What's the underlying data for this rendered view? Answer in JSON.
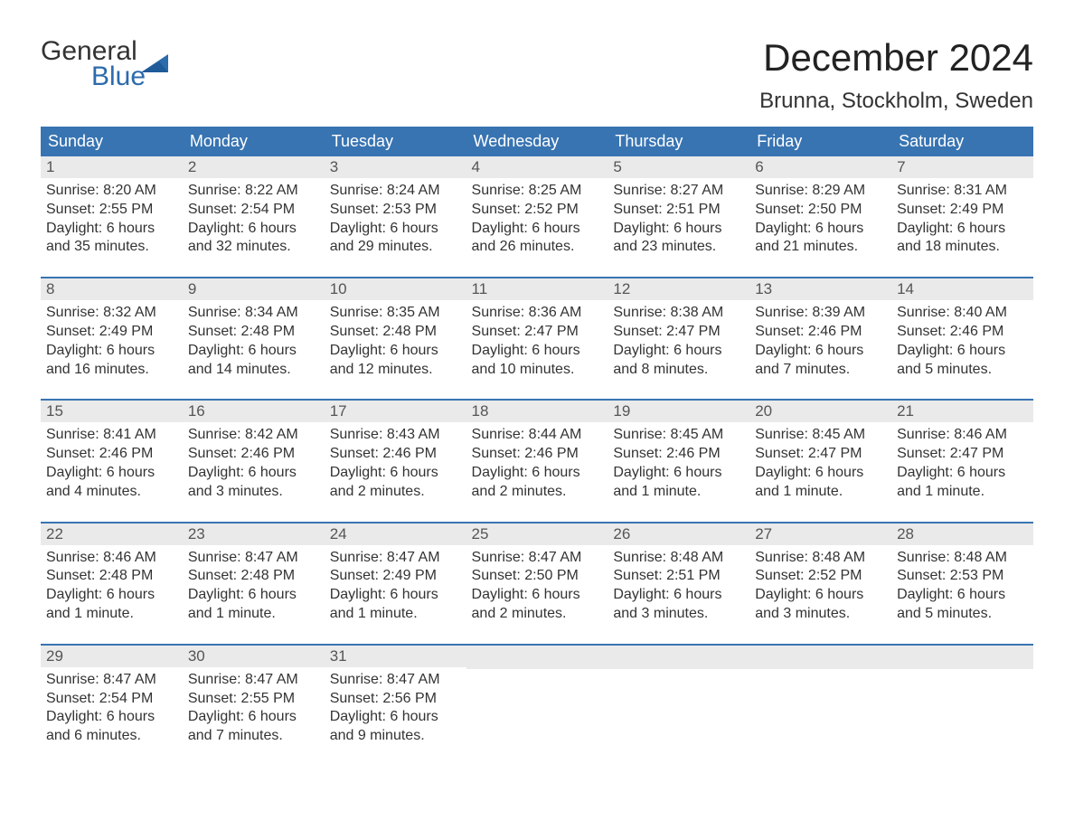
{
  "logo": {
    "word1": "General",
    "word2": "Blue"
  },
  "title": "December 2024",
  "location": "Brunna, Stockholm, Sweden",
  "colors": {
    "header_bg": "#3874b2",
    "header_text": "#ffffff",
    "daynum_bg": "#eaeaea",
    "rule": "#3874b2",
    "logo_blue": "#2c6bac",
    "body_text": "#333333",
    "page_bg": "#ffffff"
  },
  "weekdays": [
    "Sunday",
    "Monday",
    "Tuesday",
    "Wednesday",
    "Thursday",
    "Friday",
    "Saturday"
  ],
  "weeks": [
    [
      {
        "n": "1",
        "t": "Sunrise: 8:20 AM\nSunset: 2:55 PM\nDaylight: 6 hours and 35 minutes."
      },
      {
        "n": "2",
        "t": "Sunrise: 8:22 AM\nSunset: 2:54 PM\nDaylight: 6 hours and 32 minutes."
      },
      {
        "n": "3",
        "t": "Sunrise: 8:24 AM\nSunset: 2:53 PM\nDaylight: 6 hours and 29 minutes."
      },
      {
        "n": "4",
        "t": "Sunrise: 8:25 AM\nSunset: 2:52 PM\nDaylight: 6 hours and 26 minutes."
      },
      {
        "n": "5",
        "t": "Sunrise: 8:27 AM\nSunset: 2:51 PM\nDaylight: 6 hours and 23 minutes."
      },
      {
        "n": "6",
        "t": "Sunrise: 8:29 AM\nSunset: 2:50 PM\nDaylight: 6 hours and 21 minutes."
      },
      {
        "n": "7",
        "t": "Sunrise: 8:31 AM\nSunset: 2:49 PM\nDaylight: 6 hours and 18 minutes."
      }
    ],
    [
      {
        "n": "8",
        "t": "Sunrise: 8:32 AM\nSunset: 2:49 PM\nDaylight: 6 hours and 16 minutes."
      },
      {
        "n": "9",
        "t": "Sunrise: 8:34 AM\nSunset: 2:48 PM\nDaylight: 6 hours and 14 minutes."
      },
      {
        "n": "10",
        "t": "Sunrise: 8:35 AM\nSunset: 2:48 PM\nDaylight: 6 hours and 12 minutes."
      },
      {
        "n": "11",
        "t": "Sunrise: 8:36 AM\nSunset: 2:47 PM\nDaylight: 6 hours and 10 minutes."
      },
      {
        "n": "12",
        "t": "Sunrise: 8:38 AM\nSunset: 2:47 PM\nDaylight: 6 hours and 8 minutes."
      },
      {
        "n": "13",
        "t": "Sunrise: 8:39 AM\nSunset: 2:46 PM\nDaylight: 6 hours and 7 minutes."
      },
      {
        "n": "14",
        "t": "Sunrise: 8:40 AM\nSunset: 2:46 PM\nDaylight: 6 hours and 5 minutes."
      }
    ],
    [
      {
        "n": "15",
        "t": "Sunrise: 8:41 AM\nSunset: 2:46 PM\nDaylight: 6 hours and 4 minutes."
      },
      {
        "n": "16",
        "t": "Sunrise: 8:42 AM\nSunset: 2:46 PM\nDaylight: 6 hours and 3 minutes."
      },
      {
        "n": "17",
        "t": "Sunrise: 8:43 AM\nSunset: 2:46 PM\nDaylight: 6 hours and 2 minutes."
      },
      {
        "n": "18",
        "t": "Sunrise: 8:44 AM\nSunset: 2:46 PM\nDaylight: 6 hours and 2 minutes."
      },
      {
        "n": "19",
        "t": "Sunrise: 8:45 AM\nSunset: 2:46 PM\nDaylight: 6 hours and 1 minute."
      },
      {
        "n": "20",
        "t": "Sunrise: 8:45 AM\nSunset: 2:47 PM\nDaylight: 6 hours and 1 minute."
      },
      {
        "n": "21",
        "t": "Sunrise: 8:46 AM\nSunset: 2:47 PM\nDaylight: 6 hours and 1 minute."
      }
    ],
    [
      {
        "n": "22",
        "t": "Sunrise: 8:46 AM\nSunset: 2:48 PM\nDaylight: 6 hours and 1 minute."
      },
      {
        "n": "23",
        "t": "Sunrise: 8:47 AM\nSunset: 2:48 PM\nDaylight: 6 hours and 1 minute."
      },
      {
        "n": "24",
        "t": "Sunrise: 8:47 AM\nSunset: 2:49 PM\nDaylight: 6 hours and 1 minute."
      },
      {
        "n": "25",
        "t": "Sunrise: 8:47 AM\nSunset: 2:50 PM\nDaylight: 6 hours and 2 minutes."
      },
      {
        "n": "26",
        "t": "Sunrise: 8:48 AM\nSunset: 2:51 PM\nDaylight: 6 hours and 3 minutes."
      },
      {
        "n": "27",
        "t": "Sunrise: 8:48 AM\nSunset: 2:52 PM\nDaylight: 6 hours and 3 minutes."
      },
      {
        "n": "28",
        "t": "Sunrise: 8:48 AM\nSunset: 2:53 PM\nDaylight: 6 hours and 5 minutes."
      }
    ],
    [
      {
        "n": "29",
        "t": "Sunrise: 8:47 AM\nSunset: 2:54 PM\nDaylight: 6 hours and 6 minutes."
      },
      {
        "n": "30",
        "t": "Sunrise: 8:47 AM\nSunset: 2:55 PM\nDaylight: 6 hours and 7 minutes."
      },
      {
        "n": "31",
        "t": "Sunrise: 8:47 AM\nSunset: 2:56 PM\nDaylight: 6 hours and 9 minutes."
      },
      null,
      null,
      null,
      null
    ]
  ]
}
